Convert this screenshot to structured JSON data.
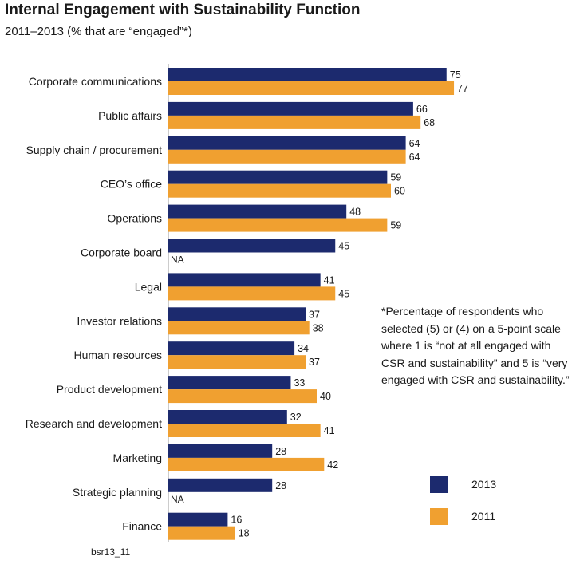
{
  "title": "Internal Engagement with Sustainability Function",
  "subtitle": "2011–2013 (% that are “engaged”*)",
  "footnote": "*Percentage of respondents who selected (5) or (4) on a 5-point scale where 1 is “not at all engaged with CSR and sustainability” and 5 is “very engaged with CSR and sustainability.”",
  "source": "bsr13_11",
  "na_label": "NA",
  "chart_data": {
    "type": "bar",
    "orientation": "horizontal",
    "categories": [
      "Corporate communications",
      "Public affairs",
      "Supply chain / procurement",
      "CEO’s office",
      "Operations",
      "Corporate board",
      "Legal",
      "Investor relations",
      "Human resources",
      "Product development",
      "Research and development",
      "Marketing",
      "Strategic planning",
      "Finance"
    ],
    "series": [
      {
        "name": "2013",
        "color": "#1c2a6e",
        "values": [
          75,
          66,
          64,
          59,
          48,
          45,
          41,
          37,
          34,
          33,
          32,
          28,
          28,
          16
        ]
      },
      {
        "name": "2011",
        "color": "#f0a030",
        "values": [
          77,
          68,
          64,
          60,
          59,
          null,
          45,
          38,
          37,
          40,
          41,
          42,
          null,
          18
        ]
      }
    ],
    "xlim": [
      0,
      100
    ],
    "grid": false,
    "legend": "bottom-right"
  }
}
